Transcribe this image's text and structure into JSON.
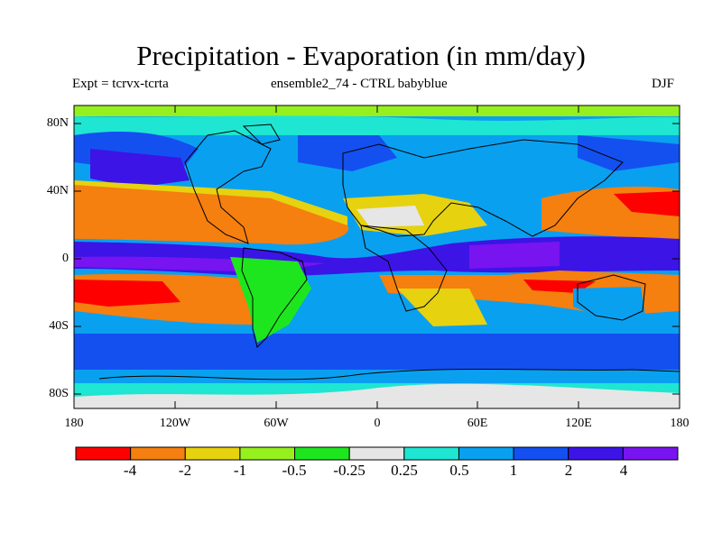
{
  "title": "Precipitation - Evaporation (in mm/day)",
  "experiment_label": "Expt = tcrvx-tcrta",
  "ensemble_label": "ensemble2_74 - CTRL babyblue",
  "season_label": "DJF",
  "latitude_ticks": [
    "80N",
    "40N",
    "0",
    "40S",
    "80S"
  ],
  "longitude_ticks": [
    "180",
    "120W",
    "60W",
    "0",
    "60E",
    "120E",
    "180"
  ],
  "colorbar": {
    "colors": [
      "#ff0000",
      "#f57f0f",
      "#e6d20f",
      "#96f01e",
      "#1ee61e",
      "#e6e6e6",
      "#1ee6d2",
      "#0aa0f0",
      "#1450f0",
      "#3c14e6",
      "#7814f0"
    ],
    "labels": [
      "-4",
      "-2",
      "-1",
      "-0.5",
      "-0.25",
      "0.25",
      "0.5",
      "1",
      "2",
      "4"
    ]
  }
}
